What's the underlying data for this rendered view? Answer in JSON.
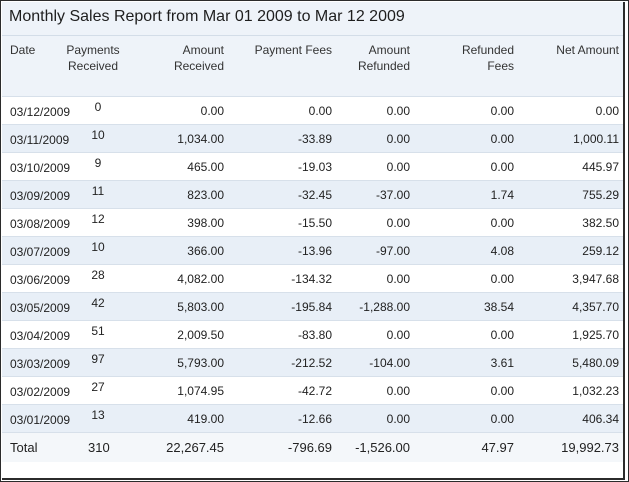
{
  "report": {
    "title": "Monthly Sales Report from Mar 01 2009 to Mar 12 2009"
  },
  "columns": {
    "date": "Date",
    "payments_received_line1": "Payments",
    "payments_received_line2": "Received",
    "amount_received_line1": "Amount",
    "amount_received_line2": "Received",
    "payment_fees": "Payment Fees",
    "amount_refunded_line1": "Amount",
    "amount_refunded_line2": "Refunded",
    "refunded_fees_line1": "Refunded",
    "refunded_fees_line2": "Fees",
    "net_amount": "Net Amount"
  },
  "rows": [
    {
      "date": "03/12/2009",
      "payments": "0",
      "amount": "0.00",
      "fees": "0.00",
      "refunded": "0.00",
      "refunded_fees": "0.00",
      "net": "0.00"
    },
    {
      "date": "03/11/2009",
      "payments": "10",
      "amount": "1,034.00",
      "fees": "-33.89",
      "refunded": "0.00",
      "refunded_fees": "0.00",
      "net": "1,000.11"
    },
    {
      "date": "03/10/2009",
      "payments": "9",
      "amount": "465.00",
      "fees": "-19.03",
      "refunded": "0.00",
      "refunded_fees": "0.00",
      "net": "445.97"
    },
    {
      "date": "03/09/2009",
      "payments": "11",
      "amount": "823.00",
      "fees": "-32.45",
      "refunded": "-37.00",
      "refunded_fees": "1.74",
      "net": "755.29"
    },
    {
      "date": "03/08/2009",
      "payments": "12",
      "amount": "398.00",
      "fees": "-15.50",
      "refunded": "0.00",
      "refunded_fees": "0.00",
      "net": "382.50"
    },
    {
      "date": "03/07/2009",
      "payments": "10",
      "amount": "366.00",
      "fees": "-13.96",
      "refunded": "-97.00",
      "refunded_fees": "4.08",
      "net": "259.12"
    },
    {
      "date": "03/06/2009",
      "payments": "28",
      "amount": "4,082.00",
      "fees": "-134.32",
      "refunded": "0.00",
      "refunded_fees": "0.00",
      "net": "3,947.68"
    },
    {
      "date": "03/05/2009",
      "payments": "42",
      "amount": "5,803.00",
      "fees": "-195.84",
      "refunded": "-1,288.00",
      "refunded_fees": "38.54",
      "net": "4,357.70"
    },
    {
      "date": "03/04/2009",
      "payments": "51",
      "amount": "2,009.50",
      "fees": "-83.80",
      "refunded": "0.00",
      "refunded_fees": "0.00",
      "net": "1,925.70"
    },
    {
      "date": "03/03/2009",
      "payments": "97",
      "amount": "5,793.00",
      "fees": "-212.52",
      "refunded": "-104.00",
      "refunded_fees": "3.61",
      "net": "5,480.09"
    },
    {
      "date": "03/02/2009",
      "payments": "27",
      "amount": "1,074.95",
      "fees": "-42.72",
      "refunded": "0.00",
      "refunded_fees": "0.00",
      "net": "1,032.23"
    },
    {
      "date": "03/01/2009",
      "payments": "13",
      "amount": "419.00",
      "fees": "-12.66",
      "refunded": "0.00",
      "refunded_fees": "0.00",
      "net": "406.34"
    }
  ],
  "totals": {
    "label": "Total",
    "payments": "310",
    "amount": "22,267.45",
    "fees": "-796.69",
    "refunded": "-1,526.00",
    "refunded_fees": "47.97",
    "net": "19,992.73"
  },
  "colors": {
    "header_bg": "#eef3f9",
    "alt_row_bg": "#e8eff7",
    "border": "#2b2b2b"
  }
}
